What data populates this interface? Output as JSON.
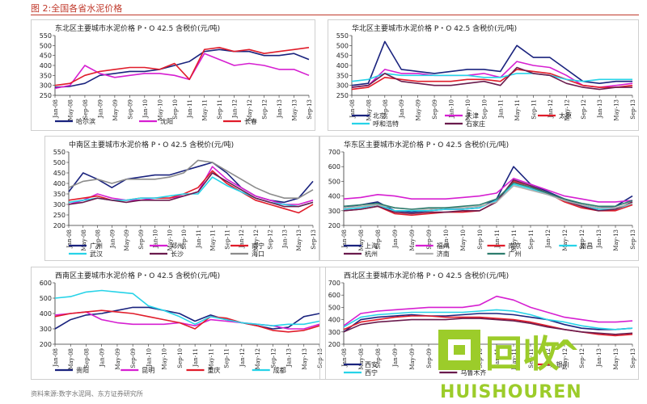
{
  "figure_title": "图 2:全国各省水泥价格",
  "source_note": "资料来源:数字水泥网、东方证券研究所",
  "watermark": {
    "logo_text": "回收",
    "sub_text": "HUISHOUREN",
    "color": "#9ccc2a"
  },
  "chart_data": [
    {
      "type": "line",
      "title": "东北区主要城市水泥价格 P・O 42.5 含税价(元/吨)",
      "ylim": [
        250,
        550
      ],
      "yticks": [
        250,
        300,
        350,
        400,
        450,
        500,
        550
      ],
      "x": [
        "Jan-08",
        "May-08",
        "Sep-08",
        "Jan-09",
        "May-09",
        "Sep-09",
        "Jan-10",
        "May-10",
        "Sep-10",
        "Jan-11",
        "May-11",
        "Sep-11",
        "Jan-12",
        "May-12",
        "Sep-12",
        "Jan-13",
        "May-13",
        "Sep-13"
      ],
      "series": [
        {
          "name": "哈尔滨",
          "color": "#1a237e",
          "values": [
            290,
            295,
            310,
            350,
            360,
            370,
            370,
            380,
            400,
            420,
            470,
            480,
            470,
            470,
            450,
            450,
            460,
            430
          ]
        },
        {
          "name": "沈阳",
          "color": "#d61fd1",
          "values": [
            285,
            300,
            400,
            360,
            340,
            350,
            360,
            360,
            350,
            330,
            460,
            430,
            400,
            410,
            400,
            380,
            380,
            350
          ]
        },
        {
          "name": "长春",
          "color": "#e01c2a",
          "values": [
            300,
            310,
            350,
            370,
            380,
            390,
            390,
            380,
            410,
            330,
            480,
            490,
            470,
            480,
            460,
            470,
            480,
            490
          ]
        }
      ]
    },
    {
      "type": "line",
      "title": "华北区主要城市水泥价格 P・O 42.5 含税价(元/吨)",
      "ylim": [
        250,
        550
      ],
      "yticks": [
        250,
        300,
        350,
        400,
        450,
        500,
        550
      ],
      "x": [
        "Jan-08",
        "May-08",
        "Sep-08",
        "Jan-09",
        "May-09",
        "Sep-09",
        "Jan-10",
        "May-10",
        "Sep-10",
        "Jan-11",
        "May-11",
        "Sep-11",
        "Jan-12",
        "May-12",
        "Sep-12",
        "Jan-13",
        "May-13",
        "Sep-13"
      ],
      "series": [
        {
          "name": "北京",
          "color": "#1a237e",
          "values": [
            300,
            310,
            520,
            380,
            370,
            360,
            370,
            380,
            380,
            370,
            500,
            440,
            440,
            380,
            320,
            310,
            320,
            320
          ]
        },
        {
          "name": "天津",
          "color": "#d61fd1",
          "values": [
            290,
            300,
            380,
            360,
            360,
            350,
            350,
            350,
            360,
            340,
            420,
            400,
            390,
            350,
            300,
            290,
            300,
            310
          ]
        },
        {
          "name": "太原",
          "color": "#e01c2a",
          "values": [
            280,
            290,
            340,
            330,
            320,
            320,
            320,
            330,
            330,
            320,
            380,
            370,
            360,
            330,
            300,
            290,
            290,
            300
          ]
        },
        {
          "name": "呼和浩特",
          "color": "#27d3e8",
          "values": [
            320,
            330,
            360,
            350,
            350,
            350,
            350,
            350,
            340,
            340,
            360,
            360,
            350,
            330,
            320,
            330,
            330,
            330
          ]
        },
        {
          "name": "石家庄",
          "color": "#6a1b4d",
          "values": [
            290,
            300,
            360,
            320,
            310,
            300,
            300,
            310,
            320,
            300,
            390,
            360,
            350,
            310,
            290,
            280,
            290,
            290
          ]
        }
      ]
    },
    {
      "type": "line",
      "title": "中南区主要城市水泥价格 P・O 42.5 含税价(元/吨)",
      "ylim": [
        200,
        550
      ],
      "yticks": [
        200,
        250,
        300,
        350,
        400,
        450,
        500,
        550
      ],
      "x": [
        "Jan-08",
        "May-08",
        "Sep-08",
        "Jan-09",
        "May-09",
        "Sep-09",
        "Jan-10",
        "May-10",
        "Sep-10",
        "Jan-11",
        "May-11",
        "Sep-11",
        "Jan-12",
        "May-12",
        "Sep-12",
        "Jan-13",
        "May-13",
        "Sep-13"
      ],
      "series": [
        {
          "name": "广州",
          "color": "#1a237e",
          "values": [
            360,
            450,
            420,
            380,
            420,
            430,
            440,
            440,
            460,
            480,
            500,
            450,
            380,
            340,
            320,
            310,
            330,
            410
          ]
        },
        {
          "name": "郑州",
          "color": "#d61fd1",
          "values": [
            300,
            320,
            350,
            330,
            320,
            320,
            330,
            330,
            340,
            360,
            480,
            420,
            380,
            340,
            320,
            300,
            300,
            320
          ]
        },
        {
          "name": "南宁",
          "color": "#e01c2a",
          "values": [
            320,
            330,
            340,
            320,
            320,
            330,
            330,
            330,
            350,
            380,
            460,
            400,
            360,
            320,
            300,
            280,
            260,
            300
          ]
        },
        {
          "name": "武汉",
          "color": "#27d3e8",
          "values": [
            310,
            320,
            330,
            320,
            320,
            330,
            330,
            340,
            350,
            350,
            430,
            390,
            360,
            330,
            310,
            300,
            290,
            310
          ]
        },
        {
          "name": "长沙",
          "color": "#6a1b4d",
          "values": [
            300,
            310,
            330,
            320,
            310,
            320,
            320,
            320,
            340,
            360,
            450,
            410,
            370,
            330,
            310,
            290,
            290,
            310
          ]
        },
        {
          "name": "海口",
          "color": "#8c8c8c",
          "values": [
            380,
            410,
            420,
            400,
            420,
            420,
            420,
            430,
            450,
            510,
            500,
            460,
            420,
            380,
            350,
            330,
            330,
            370
          ]
        }
      ]
    },
    {
      "type": "line",
      "title": "华东区主要城市水泥价格 P・O 42.5 含税价(元/吨)",
      "ylim": [
        200,
        700
      ],
      "yticks": [
        200,
        300,
        400,
        500,
        600,
        700
      ],
      "x": [
        "Jan-08",
        "May-08",
        "Sep-08",
        "Jan-09",
        "May-09",
        "Sep-09",
        "Jan-10",
        "May-10",
        "Sep-10",
        "Jan-11",
        "May-11",
        "Sep-11",
        "Jan-12",
        "May-12",
        "Sep-12",
        "Jan-13",
        "May-13",
        "Sep-13"
      ],
      "series": [
        {
          "name": "上海",
          "color": "#1a237e",
          "values": [
            320,
            340,
            360,
            300,
            290,
            300,
            310,
            310,
            320,
            380,
            600,
            480,
            430,
            380,
            340,
            320,
            330,
            400
          ]
        },
        {
          "name": "福州",
          "color": "#d61fd1",
          "values": [
            380,
            390,
            410,
            400,
            380,
            380,
            380,
            390,
            400,
            420,
            520,
            480,
            440,
            400,
            380,
            360,
            360,
            370
          ]
        },
        {
          "name": "南京",
          "color": "#e01c2a",
          "values": [
            300,
            310,
            330,
            280,
            270,
            280,
            290,
            290,
            300,
            360,
            500,
            460,
            420,
            360,
            320,
            300,
            300,
            340
          ]
        },
        {
          "name": "南昌",
          "color": "#27d3e8",
          "values": [
            310,
            320,
            340,
            300,
            300,
            300,
            310,
            310,
            320,
            370,
            480,
            450,
            410,
            370,
            330,
            310,
            310,
            350
          ]
        },
        {
          "name": "杭州",
          "color": "#6a1b4d",
          "values": [
            300,
            310,
            330,
            290,
            280,
            290,
            290,
            300,
            300,
            360,
            510,
            470,
            420,
            370,
            330,
            300,
            310,
            360
          ]
        },
        {
          "name": "济南",
          "color": "#b0b0b0",
          "values": [
            320,
            330,
            340,
            320,
            310,
            310,
            320,
            320,
            330,
            360,
            470,
            440,
            410,
            370,
            340,
            320,
            320,
            350
          ]
        },
        {
          "name": "广州",
          "color": "#2e7d6e",
          "values": [
            330,
            340,
            350,
            320,
            310,
            320,
            320,
            330,
            340,
            380,
            490,
            460,
            420,
            380,
            350,
            330,
            330,
            370
          ]
        }
      ]
    },
    {
      "type": "line",
      "title": "西南区主要城市水泥价格 P・O 42.5 含税价(元/吨)",
      "ylim": [
        200,
        600
      ],
      "yticks": [
        200,
        300,
        400,
        500,
        600
      ],
      "x": [
        "Jan-08",
        "May-08",
        "Sep-08",
        "Jan-09",
        "May-09",
        "Sep-09",
        "Jan-10",
        "May-10",
        "Sep-10",
        "Jan-11",
        "May-11",
        "Sep-11",
        "Jan-12",
        "May-12",
        "Sep-12",
        "Jan-13",
        "May-13",
        "Sep-13"
      ],
      "series": [
        {
          "name": "贵阳",
          "color": "#1a237e",
          "values": [
            300,
            360,
            390,
            400,
            420,
            440,
            440,
            420,
            400,
            350,
            390,
            360,
            340,
            320,
            300,
            310,
            380,
            400
          ]
        },
        {
          "name": "昆明",
          "color": "#d61fd1",
          "values": [
            390,
            400,
            410,
            360,
            340,
            330,
            330,
            330,
            340,
            320,
            360,
            350,
            340,
            330,
            320,
            300,
            300,
            330
          ]
        },
        {
          "name": "重庆",
          "color": "#e01c2a",
          "values": [
            380,
            400,
            410,
            420,
            410,
            400,
            380,
            360,
            340,
            300,
            380,
            370,
            340,
            320,
            290,
            280,
            290,
            320
          ]
        },
        {
          "name": "成都",
          "color": "#27d3e8",
          "values": [
            500,
            510,
            540,
            550,
            540,
            530,
            450,
            420,
            380,
            330,
            380,
            360,
            340,
            330,
            320,
            330,
            330,
            350
          ]
        }
      ]
    },
    {
      "type": "line",
      "title": "西北区主要城市水泥价格 P・O 42.5 含税价(元/吨)",
      "ylim": [
        200,
        700
      ],
      "yticks": [
        200,
        300,
        400,
        500,
        600,
        700
      ],
      "x": [
        "Jan-08",
        "May-08",
        "Sep-08",
        "Jan-09",
        "May-09",
        "Sep-09",
        "Jan-10",
        "May-10",
        "Sep-10",
        "Jan-11",
        "May-11",
        "Sep-11",
        "Jan-12",
        "May-12",
        "Sep-12",
        "Jan-13",
        "May-13",
        "Sep-13"
      ],
      "series": [
        {
          "name": "西安",
          "color": "#1a237e",
          "values": [
            300,
            400,
            420,
            430,
            440,
            430,
            430,
            440,
            450,
            450,
            440,
            420,
            400,
            360,
            330,
            320,
            320,
            330
          ]
        },
        {
          "name": "兰州",
          "color": "#d61fd1",
          "values": [
            350,
            450,
            470,
            480,
            490,
            500,
            500,
            500,
            520,
            590,
            560,
            500,
            460,
            420,
            400,
            380,
            380,
            390
          ]
        },
        {
          "name": "银川",
          "color": "#e01c2a",
          "values": [
            320,
            380,
            400,
            420,
            430,
            430,
            420,
            420,
            420,
            410,
            400,
            380,
            350,
            320,
            300,
            280,
            270,
            280
          ]
        },
        {
          "name": "西宁",
          "color": "#27d3e8",
          "values": [
            340,
            420,
            440,
            450,
            460,
            460,
            460,
            460,
            470,
            480,
            470,
            440,
            400,
            380,
            350,
            330,
            320,
            330
          ]
        },
        {
          "name": "乌鲁木齐",
          "color": "#6a1b4d",
          "values": [
            300,
            360,
            380,
            390,
            400,
            400,
            400,
            410,
            410,
            400,
            390,
            370,
            340,
            320,
            300,
            290,
            280,
            290
          ]
        }
      ]
    }
  ]
}
